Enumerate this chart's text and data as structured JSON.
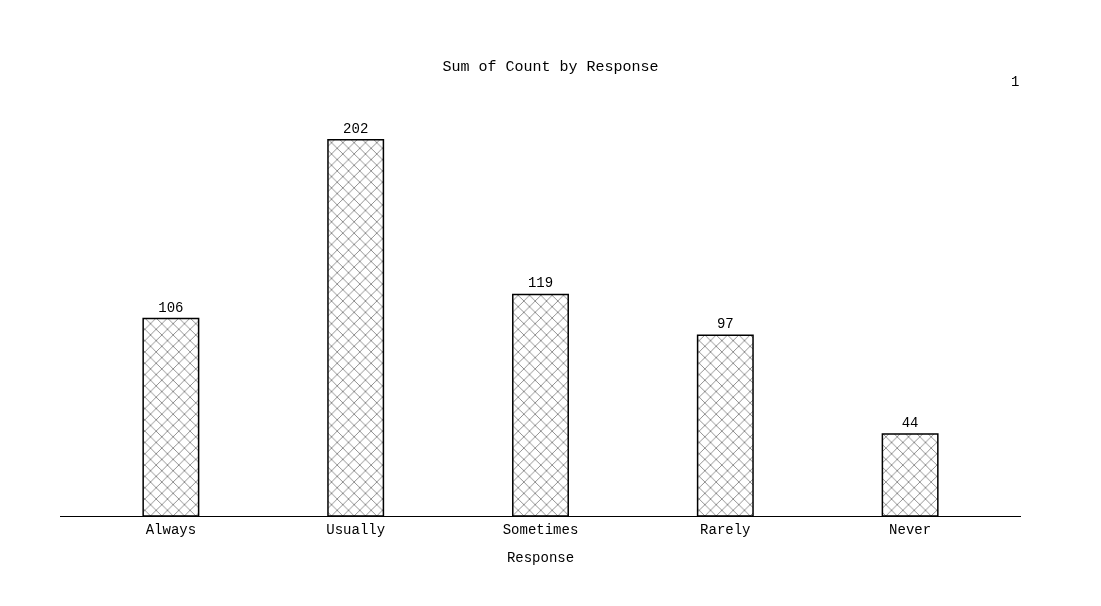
{
  "chart_data": {
    "type": "bar",
    "title": "Sum of Count by Response",
    "xlabel": "Response",
    "categories": [
      "Always",
      "Usually",
      "Sometimes",
      "Rarely",
      "Never"
    ],
    "values": [
      106,
      202,
      119,
      97,
      44
    ],
    "color": "#000000",
    "data_labels": true,
    "legend": false,
    "annotations": [
      "1"
    ]
  }
}
